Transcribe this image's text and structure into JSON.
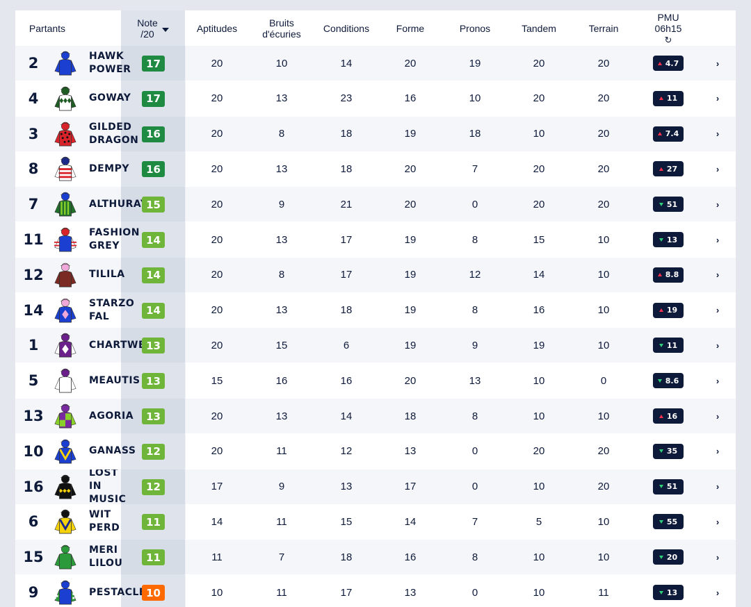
{
  "header": {
    "partants": "Partants",
    "note_line1": "Note",
    "note_line2": "/20",
    "aptitudes": "Aptitudes",
    "bruits_line1": "Bruits",
    "bruits_line2": "d'écuries",
    "conditions": "Conditions",
    "forme": "Forme",
    "pronos": "Pronos",
    "tandem": "Tandem",
    "terrain": "Terrain",
    "pmu_line1": "PMU",
    "pmu_line2": "06h15"
  },
  "colors": {
    "navy": "#0e1a3a",
    "score_dark_green": "#1f8a42",
    "score_light_green": "#6fb53a",
    "score_orange": "#ff6a00",
    "odds_up": "#ff2f4e",
    "odds_down": "#2fd07a"
  },
  "rows": [
    {
      "num": "2",
      "name": "HAWK\nPOWER",
      "jockey": {
        "body": "#1b3fd0",
        "cap": "#1b3fd0",
        "sleeve": "#1b3fd0",
        "pattern": "plain"
      },
      "score": "17",
      "tone": "dark",
      "apt": "20",
      "bruits": "10",
      "cond": "14",
      "forme": "20",
      "pronos": "19",
      "tandem": "20",
      "terrain": "20",
      "odds": "4.7",
      "trend": "up"
    },
    {
      "num": "4",
      "name": "GOWAY",
      "jockey": {
        "body": "#ffffff",
        "cap": "#1f5c24",
        "sleeve": "#1f5c24",
        "pattern": "diamonds-green"
      },
      "score": "17",
      "tone": "dark",
      "apt": "20",
      "bruits": "13",
      "cond": "23",
      "forme": "16",
      "pronos": "10",
      "tandem": "20",
      "terrain": "20",
      "odds": "11",
      "trend": "up"
    },
    {
      "num": "3",
      "name": "GILDED\nDRAGON",
      "jockey": {
        "body": "#d8232a",
        "cap": "#d8232a",
        "sleeve": "#d8232a",
        "pattern": "dots"
      },
      "score": "16",
      "tone": "dark",
      "apt": "20",
      "bruits": "8",
      "cond": "18",
      "forme": "19",
      "pronos": "18",
      "tandem": "10",
      "terrain": "20",
      "odds": "7.4",
      "trend": "up"
    },
    {
      "num": "8",
      "name": "DEMPY",
      "jockey": {
        "body": "#ffffff",
        "cap": "#1b2a8a",
        "sleeve": "#ffffff",
        "pattern": "hoops-red"
      },
      "score": "16",
      "tone": "dark",
      "apt": "20",
      "bruits": "13",
      "cond": "18",
      "forme": "20",
      "pronos": "7",
      "tandem": "20",
      "terrain": "20",
      "odds": "27",
      "trend": "up"
    },
    {
      "num": "7",
      "name": "ALTHURAYA",
      "jockey": {
        "body": "#1f6e2a",
        "cap": "#1b3fd0",
        "sleeve": "#1f6e2a",
        "pattern": "stripes-lime"
      },
      "score": "15",
      "tone": "light",
      "apt": "20",
      "bruits": "9",
      "cond": "21",
      "forme": "20",
      "pronos": "0",
      "tandem": "20",
      "terrain": "20",
      "odds": "51",
      "trend": "down"
    },
    {
      "num": "11",
      "name": "FASHION\nGREY",
      "jockey": {
        "body": "#1b3fd0",
        "cap": "#d8232a",
        "sleeve": "#ffffff",
        "pattern": "sleeve-hoops-red"
      },
      "score": "14",
      "tone": "light",
      "apt": "20",
      "bruits": "13",
      "cond": "17",
      "forme": "19",
      "pronos": "8",
      "tandem": "15",
      "terrain": "10",
      "odds": "13",
      "trend": "down"
    },
    {
      "num": "12",
      "name": "TILILA",
      "jockey": {
        "body": "#7a2a22",
        "cap": "#f0a8d8",
        "sleeve": "#7a2a22",
        "pattern": "plain"
      },
      "score": "14",
      "tone": "light",
      "apt": "20",
      "bruits": "8",
      "cond": "17",
      "forme": "19",
      "pronos": "12",
      "tandem": "14",
      "terrain": "10",
      "odds": "8.8",
      "trend": "up"
    },
    {
      "num": "14",
      "name": "STARZO\nFAL",
      "jockey": {
        "body": "#1b3fd0",
        "cap": "#f0a8d8",
        "sleeve": "#1b3fd0",
        "pattern": "diamond-pink"
      },
      "score": "14",
      "tone": "light",
      "apt": "20",
      "bruits": "13",
      "cond": "18",
      "forme": "19",
      "pronos": "8",
      "tandem": "16",
      "terrain": "10",
      "odds": "19",
      "trend": "up"
    },
    {
      "num": "1",
      "name": "CHARTWELL",
      "jockey": {
        "body": "#6a1f8a",
        "cap": "#6a1f8a",
        "sleeve": "#ffffff",
        "pattern": "diamond-white"
      },
      "score": "13",
      "tone": "light",
      "apt": "20",
      "bruits": "15",
      "cond": "6",
      "forme": "19",
      "pronos": "9",
      "tandem": "19",
      "terrain": "10",
      "odds": "11",
      "trend": "down"
    },
    {
      "num": "5",
      "name": "MEAUTIS",
      "jockey": {
        "body": "#ffffff",
        "cap": "#6a1f8a",
        "sleeve": "#ffffff",
        "pattern": "plain"
      },
      "score": "13",
      "tone": "light",
      "apt": "15",
      "bruits": "16",
      "cond": "16",
      "forme": "20",
      "pronos": "13",
      "tandem": "10",
      "terrain": "0",
      "odds": "8.6",
      "trend": "down"
    },
    {
      "num": "13",
      "name": "AGORIA",
      "jockey": {
        "body": "#7a2aa0",
        "cap": "#7a2aa0",
        "sleeve": "#8ad02a",
        "pattern": "quarters-lime"
      },
      "score": "13",
      "tone": "light",
      "apt": "20",
      "bruits": "13",
      "cond": "14",
      "forme": "18",
      "pronos": "8",
      "tandem": "10",
      "terrain": "10",
      "odds": "16",
      "trend": "up"
    },
    {
      "num": "10",
      "name": "GANASS",
      "jockey": {
        "body": "#1b3fd0",
        "cap": "#1b3fd0",
        "sleeve": "#1b3fd0",
        "pattern": "chevron-yellow"
      },
      "score": "12",
      "tone": "light",
      "apt": "20",
      "bruits": "11",
      "cond": "12",
      "forme": "13",
      "pronos": "0",
      "tandem": "20",
      "terrain": "20",
      "odds": "35",
      "trend": "down"
    },
    {
      "num": "16",
      "name": "LOST\nIN\nMUSIC",
      "jockey": {
        "body": "#111111",
        "cap": "#111111",
        "sleeve": "#111111",
        "pattern": "diamonds-yellow"
      },
      "score": "12",
      "tone": "light",
      "apt": "17",
      "bruits": "9",
      "cond": "13",
      "forme": "17",
      "pronos": "0",
      "tandem": "10",
      "terrain": "20",
      "odds": "51",
      "trend": "down"
    },
    {
      "num": "6",
      "name": "WIT\nPERD",
      "jockey": {
        "body": "#f5d20a",
        "cap": "#111111",
        "sleeve": "#f5d20a",
        "pattern": "chevron-navy"
      },
      "score": "11",
      "tone": "light",
      "apt": "14",
      "bruits": "11",
      "cond": "15",
      "forme": "14",
      "pronos": "7",
      "tandem": "5",
      "terrain": "10",
      "odds": "55",
      "trend": "down"
    },
    {
      "num": "15",
      "name": "MERI\nLILOU",
      "jockey": {
        "body": "#2a9a3a",
        "cap": "#2a9a3a",
        "sleeve": "#2a9a3a",
        "pattern": "plain"
      },
      "score": "11",
      "tone": "light",
      "apt": "11",
      "bruits": "7",
      "cond": "18",
      "forme": "16",
      "pronos": "8",
      "tandem": "10",
      "terrain": "10",
      "odds": "20",
      "trend": "down"
    },
    {
      "num": "9",
      "name": "PESTACLE",
      "jockey": {
        "body": "#1b3fd0",
        "cap": "#1b3fd0",
        "sleeve": "#2a9a3a",
        "pattern": "checks-green"
      },
      "score": "10",
      "tone": "orange",
      "apt": "10",
      "bruits": "11",
      "cond": "17",
      "forme": "13",
      "pronos": "0",
      "tandem": "10",
      "terrain": "11",
      "odds": "13",
      "trend": "down"
    }
  ]
}
